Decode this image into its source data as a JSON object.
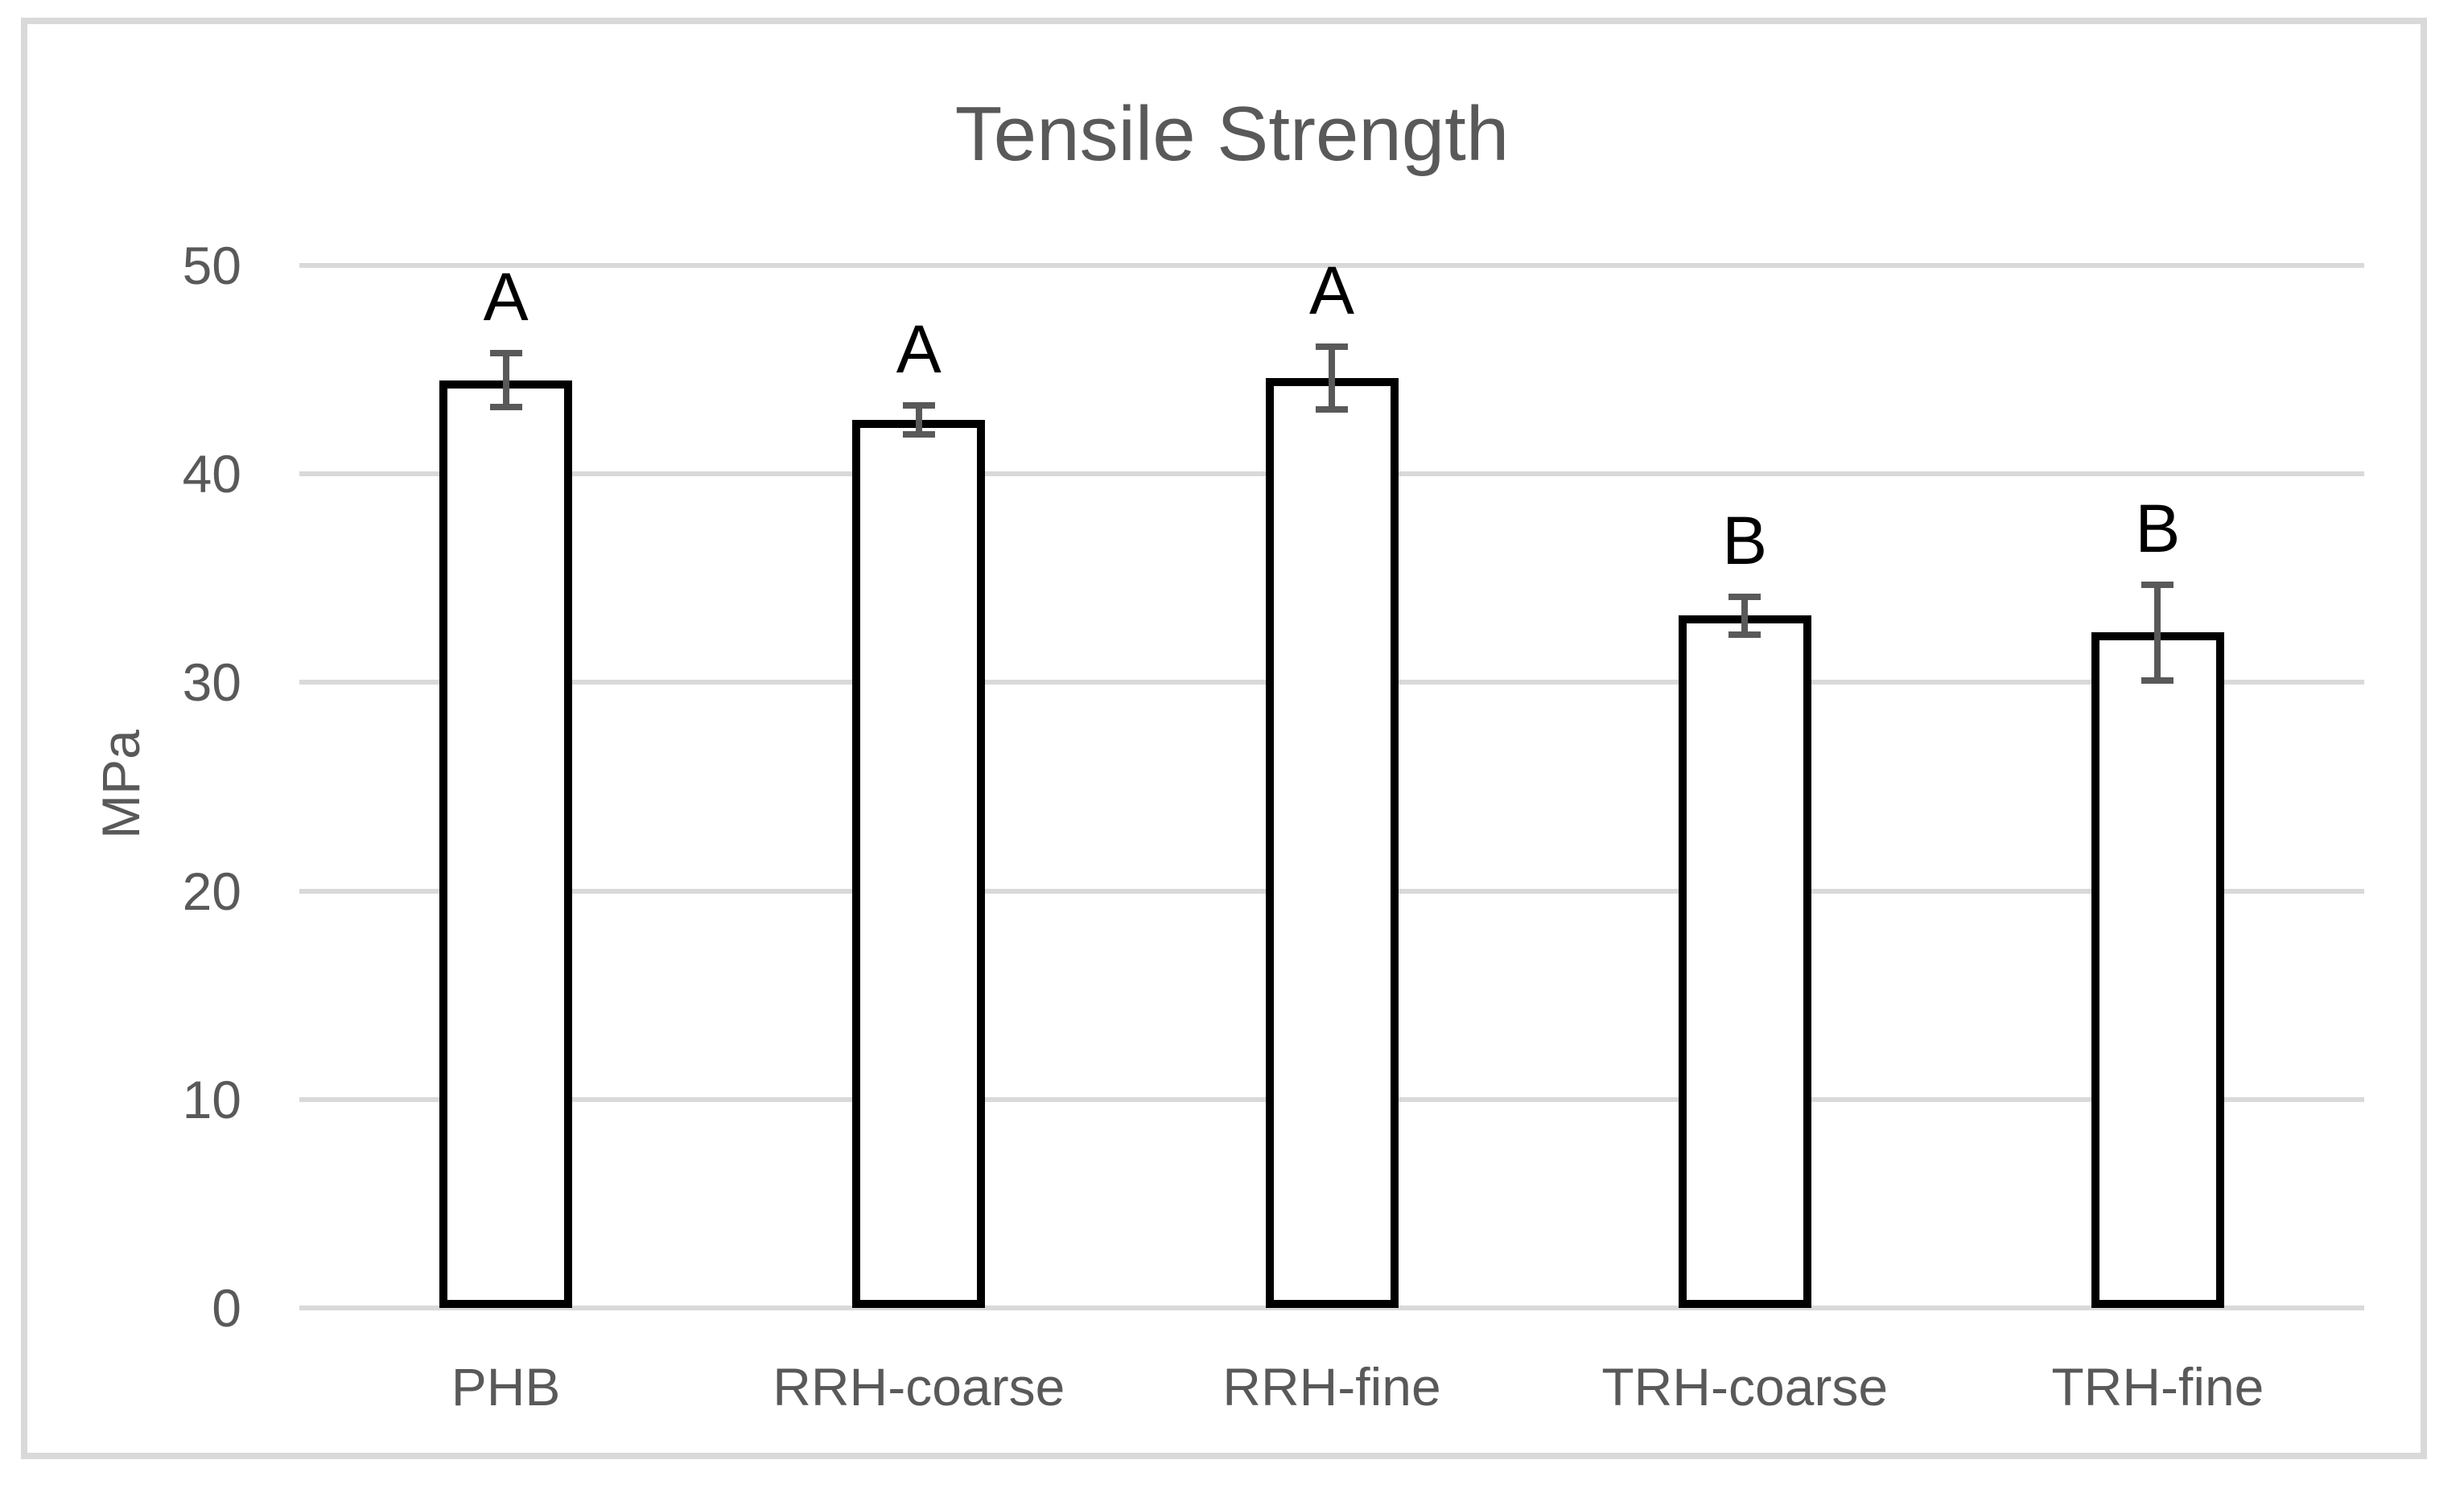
{
  "figure": {
    "background": "#ffffff",
    "border_color": "#d9d9d9"
  },
  "chart_data": {
    "type": "bar",
    "title": "Tensile Strength",
    "xlabel": "",
    "ylabel": "MPa",
    "ylim": [
      0,
      50
    ],
    "yticks": [
      0,
      10,
      20,
      30,
      40,
      50
    ],
    "categories": [
      "PHB",
      "RRH-coarse",
      "RRH-fine",
      "TRH-coarse",
      "TRH-fine"
    ],
    "values": [
      44.5,
      42.6,
      44.6,
      33.2,
      32.4
    ],
    "error_bars": [
      1.3,
      0.7,
      1.5,
      0.9,
      2.3
    ],
    "significance_letters": [
      "A",
      "A",
      "A",
      "B",
      "B"
    ],
    "grid": true,
    "legend": false,
    "colors": {
      "bar_fill": "#ffffff",
      "bar_border": "#000000",
      "error_bar": "#595959",
      "gridline": "#d9d9d9",
      "text": "#595959",
      "letters": "#000000"
    }
  }
}
